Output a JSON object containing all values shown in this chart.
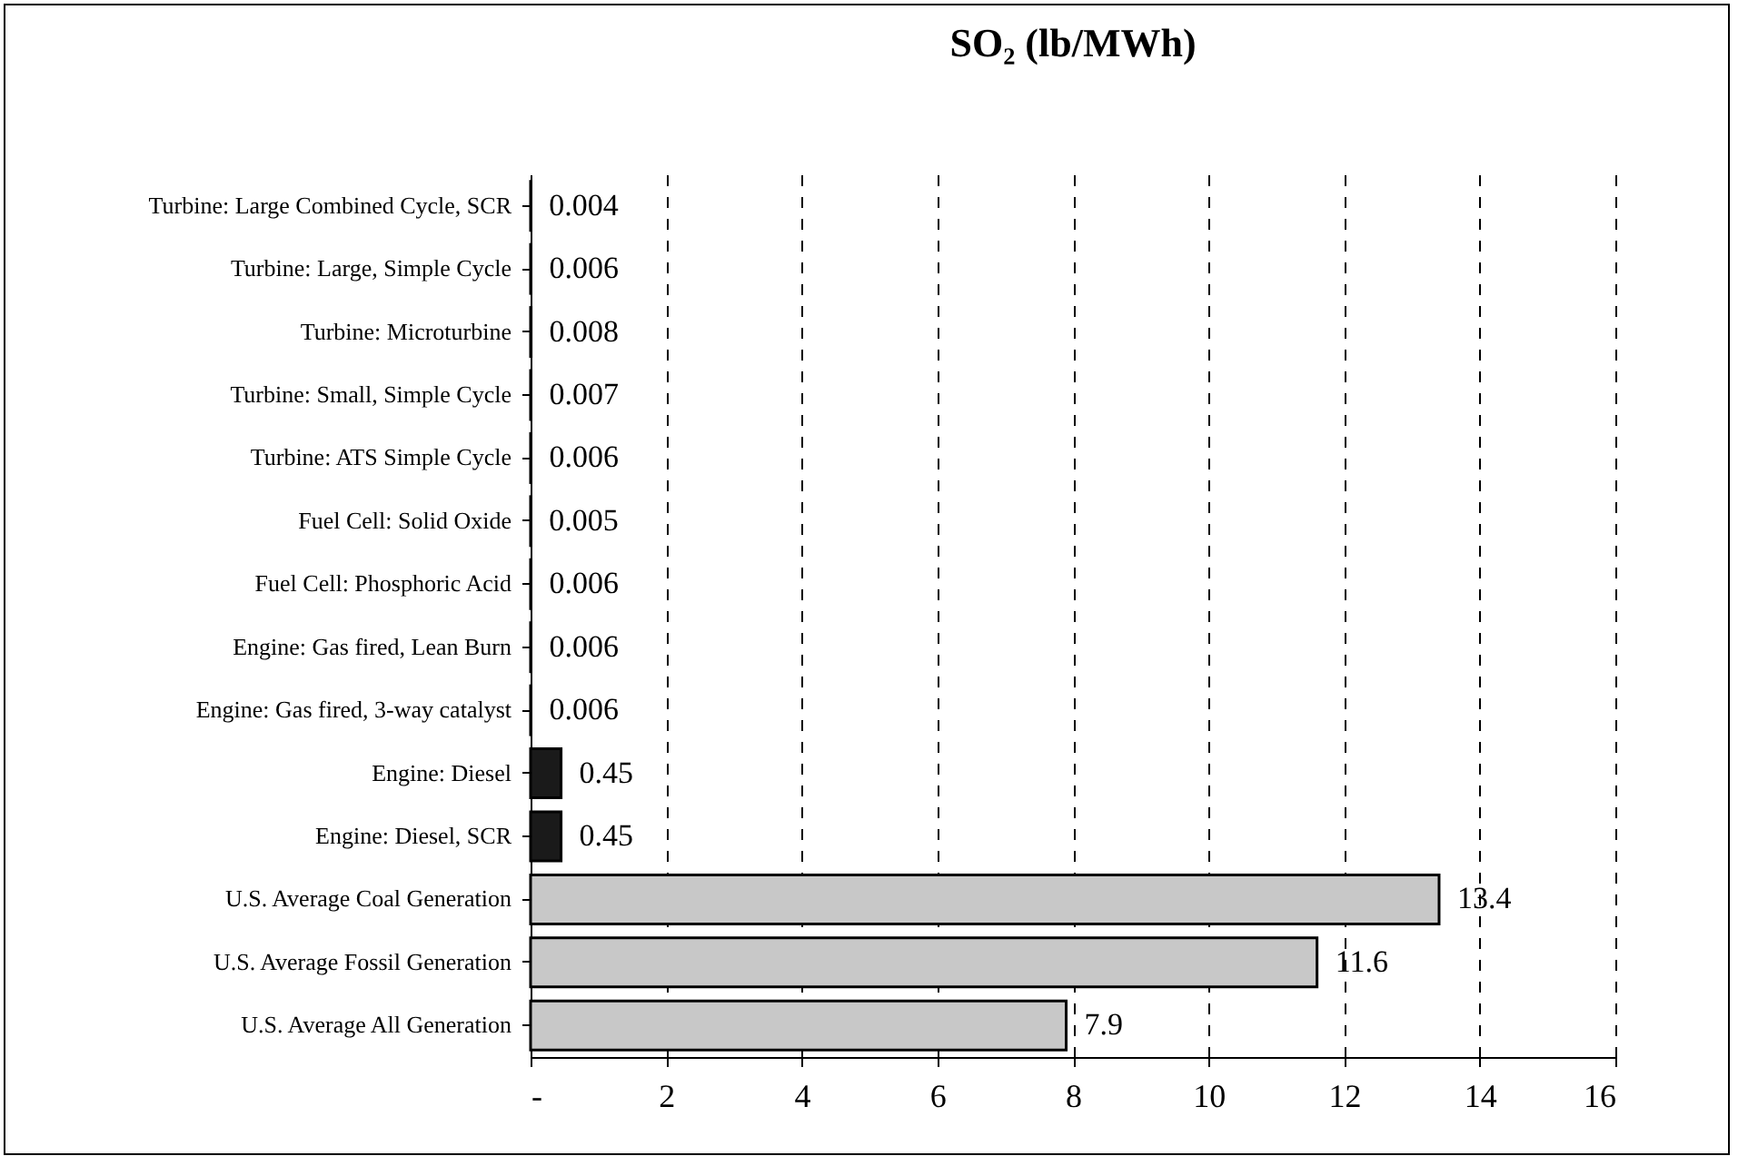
{
  "chart_data": {
    "type": "bar",
    "orientation": "horizontal",
    "title": "SO₂ (lb/MWh)",
    "categories": [
      "Turbine: Large Combined Cycle, SCR",
      "Turbine: Large, Simple Cycle",
      "Turbine: Microturbine",
      "Turbine: Small, Simple Cycle",
      "Turbine: ATS Simple Cycle",
      "Fuel Cell: Solid Oxide",
      "Fuel Cell: Phosphoric Acid",
      "Engine: Gas fired, Lean Burn",
      "Engine: Gas fired, 3-way catalyst",
      "Engine: Diesel",
      "Engine: Diesel, SCR",
      "U.S. Average Coal Generation",
      "U.S. Average Fossil Generation",
      "U.S. Average All Generation"
    ],
    "values": [
      0.004,
      0.006,
      0.008,
      0.007,
      0.006,
      0.005,
      0.006,
      0.006,
      0.006,
      0.45,
      0.45,
      13.4,
      11.6,
      7.9
    ],
    "colors": [
      "#808080",
      "#808080",
      "#808080",
      "#808080",
      "#808080",
      "#808080",
      "#808080",
      "#808080",
      "#808080",
      "#1a1a1a",
      "#1a1a1a",
      "#c8c8c8",
      "#c8c8c8",
      "#c8c8c8"
    ],
    "xlim": [
      0,
      16
    ],
    "xticks": [
      {
        "value": 0,
        "label": "-"
      },
      2,
      4,
      6,
      8,
      10,
      12,
      14,
      16
    ],
    "grid": "x",
    "data_labels": true
  }
}
